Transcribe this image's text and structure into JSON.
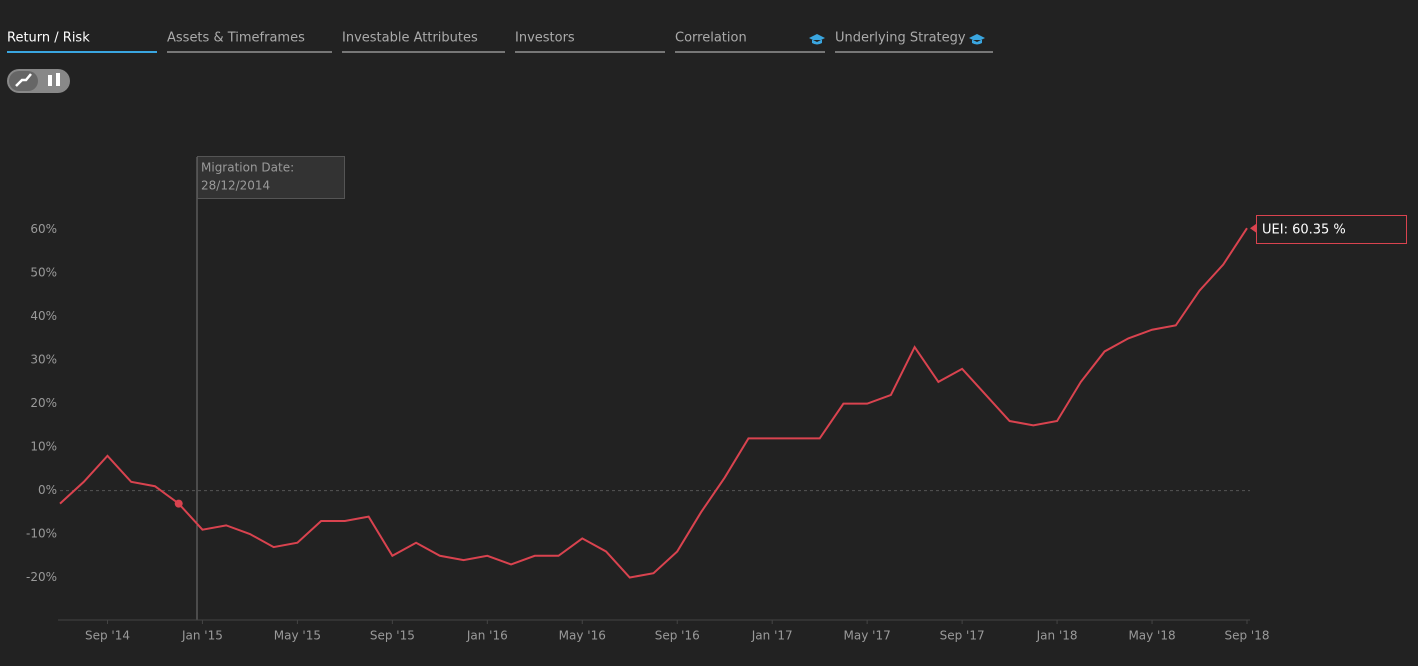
{
  "tabs": [
    "Return / Risk",
    "Assets & Timeframes",
    "Investable Attributes",
    "Investors",
    "Correlation",
    "Underlying Strategy"
  ],
  "chart_data": {
    "type": "line",
    "annotation": {
      "title": "Migration Date:",
      "date": "28/12/2014"
    },
    "end_label": "UEI: 60.35 %",
    "x": [
      "2014-07",
      "2014-08",
      "2014-09",
      "2014-10",
      "2014-11",
      "2014-12",
      "2015-01",
      "2015-02",
      "2015-03",
      "2015-04",
      "2015-05",
      "2015-06",
      "2015-07",
      "2015-08",
      "2015-09",
      "2015-10",
      "2015-11",
      "2015-12",
      "2016-01",
      "2016-02",
      "2016-03",
      "2016-04",
      "2016-05",
      "2016-06",
      "2016-07",
      "2016-08",
      "2016-09",
      "2016-10",
      "2016-11",
      "2016-12",
      "2017-01",
      "2017-02",
      "2017-03",
      "2017-04",
      "2017-05",
      "2017-06",
      "2017-07",
      "2017-08",
      "2017-09",
      "2017-10",
      "2017-11",
      "2017-12",
      "2018-01",
      "2018-02",
      "2018-03",
      "2018-04",
      "2018-05",
      "2018-06",
      "2018-07",
      "2018-08",
      "2018-09"
    ],
    "series": [
      {
        "name": "UEI",
        "color": "#d9434f",
        "values": [
          -3,
          2,
          8,
          2,
          1,
          -3,
          -9,
          -8,
          -10,
          -13,
          -12,
          -7,
          -7,
          -6,
          -15,
          -12,
          -15,
          -16,
          -15,
          -17,
          -15,
          -15,
          -11,
          -14,
          -20,
          -19,
          -14,
          -5,
          3,
          12,
          12,
          12,
          12,
          20,
          20,
          22,
          33,
          25,
          28,
          22,
          16,
          15,
          16,
          25,
          32,
          35,
          37,
          38,
          46,
          52,
          60.35
        ]
      }
    ],
    "xlim": [
      "2014-07",
      "2018-09"
    ],
    "xticks": [
      {
        "value": "2014-09",
        "label": "Sep '14"
      },
      {
        "value": "2015-01",
        "label": "Jan '15"
      },
      {
        "value": "2015-05",
        "label": "May '15"
      },
      {
        "value": "2015-09",
        "label": "Sep '15"
      },
      {
        "value": "2016-01",
        "label": "Jan '16"
      },
      {
        "value": "2016-05",
        "label": "May '16"
      },
      {
        "value": "2016-09",
        "label": "Sep '16"
      },
      {
        "value": "2017-01",
        "label": "Jan '17"
      },
      {
        "value": "2017-05",
        "label": "May '17"
      },
      {
        "value": "2017-09",
        "label": "Sep '17"
      },
      {
        "value": "2018-01",
        "label": "Jan '18"
      },
      {
        "value": "2018-05",
        "label": "May '18"
      },
      {
        "value": "2018-09",
        "label": "Sep '18"
      }
    ],
    "ylim": [
      -30,
      65
    ],
    "yticks": [
      {
        "value": -20,
        "label": "-20%"
      },
      {
        "value": -10,
        "label": "-10%"
      },
      {
        "value": 0,
        "label": "0%"
      },
      {
        "value": 10,
        "label": "10%"
      },
      {
        "value": 20,
        "label": "20%"
      },
      {
        "value": 30,
        "label": "30%"
      },
      {
        "value": 40,
        "label": "40%"
      },
      {
        "value": 50,
        "label": "50%"
      },
      {
        "value": 60,
        "label": "60%"
      }
    ],
    "zero_line": true
  }
}
